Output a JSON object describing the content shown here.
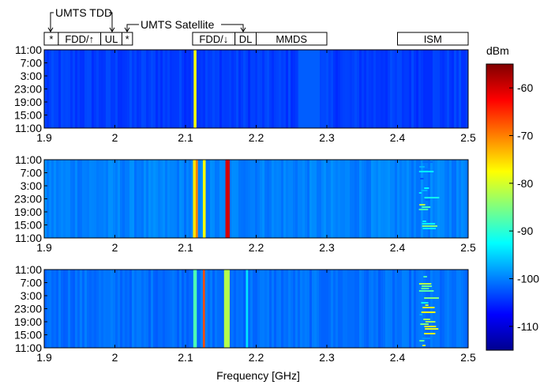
{
  "band_annotations": {
    "callouts": [
      "UMTS TDD",
      "UMTS Satellite"
    ],
    "boxes": [
      {
        "label": "*",
        "start_ghz": 1.9,
        "end_ghz": 1.92
      },
      {
        "label": "FDD/↑",
        "start_ghz": 1.92,
        "end_ghz": 1.98
      },
      {
        "label": "UL",
        "start_ghz": 1.98,
        "end_ghz": 2.01
      },
      {
        "label": "*",
        "start_ghz": 2.01,
        "end_ghz": 2.025
      },
      {
        "label": "FDD/↓",
        "start_ghz": 2.11,
        "end_ghz": 2.17
      },
      {
        "label": "DL",
        "start_ghz": 2.17,
        "end_ghz": 2.2
      },
      {
        "label": "MMDS",
        "start_ghz": 2.2,
        "end_ghz": 2.3
      },
      {
        "label": "ISM",
        "start_ghz": 2.4,
        "end_ghz": 2.5
      }
    ]
  },
  "colorbar": {
    "label": "dBm",
    "ticks": [
      "-60",
      "-70",
      "-80",
      "-90",
      "-100",
      "-110"
    ],
    "range": [
      -115,
      -55
    ]
  },
  "chart_data": [
    {
      "type": "heatmap",
      "title": "",
      "xlabel": "",
      "ylabel": "",
      "xlim": [
        1.9,
        2.5
      ],
      "x_ticks": [
        "1.9",
        "2",
        "2.1",
        "2.2",
        "2.3",
        "2.4",
        "2.5"
      ],
      "y_ticks": [
        "11:00",
        "7:00",
        "3:00",
        "23:00",
        "19:00",
        "15:00",
        "11:00"
      ],
      "background_dbm": -104,
      "features": [
        {
          "freq_ghz": 2.1135,
          "width_ghz": 0.004,
          "dbm": -78
        },
        {
          "freq_ghz": 2.275,
          "width_ghz": 0.03,
          "dbm": -102
        }
      ]
    },
    {
      "type": "heatmap",
      "title": "",
      "xlabel": "",
      "ylabel": "",
      "xlim": [
        1.9,
        2.5
      ],
      "x_ticks": [
        "1.9",
        "2",
        "2.1",
        "2.2",
        "2.3",
        "2.4",
        "2.5"
      ],
      "y_ticks": [
        "11:00",
        "7:00",
        "3:00",
        "23:00",
        "19:00",
        "15:00",
        "11:00"
      ],
      "background_dbm": -100,
      "features": [
        {
          "freq_ghz": 2.1125,
          "width_ghz": 0.004,
          "dbm": -76
        },
        {
          "freq_ghz": 2.116,
          "width_ghz": 0.003,
          "dbm": -70
        },
        {
          "freq_ghz": 2.1265,
          "width_ghz": 0.004,
          "dbm": -78
        },
        {
          "freq_ghz": 2.1595,
          "width_ghz": 0.006,
          "dbm": -60
        },
        {
          "freq_ghz": 2.44,
          "width_ghz": 0.02,
          "dbm": -92
        }
      ]
    },
    {
      "type": "heatmap",
      "title": "",
      "xlabel": "Frequency [GHz]",
      "ylabel": "",
      "xlim": [
        1.9,
        2.5
      ],
      "x_ticks": [
        "1.9",
        "2",
        "2.1",
        "2.2",
        "2.3",
        "2.4",
        "2.5"
      ],
      "y_ticks": [
        "11:00",
        "7:00",
        "3:00",
        "23:00",
        "19:00",
        "15:00",
        "11:00"
      ],
      "background_dbm": -101,
      "features": [
        {
          "freq_ghz": 2.1135,
          "width_ghz": 0.005,
          "dbm": -88
        },
        {
          "freq_ghz": 2.126,
          "width_ghz": 0.003,
          "dbm": -67
        },
        {
          "freq_ghz": 2.1585,
          "width_ghz": 0.008,
          "dbm": -82
        },
        {
          "freq_ghz": 2.187,
          "width_ghz": 0.003,
          "dbm": -94
        },
        {
          "freq_ghz": 2.44,
          "width_ghz": 0.02,
          "dbm": -88
        }
      ]
    }
  ]
}
